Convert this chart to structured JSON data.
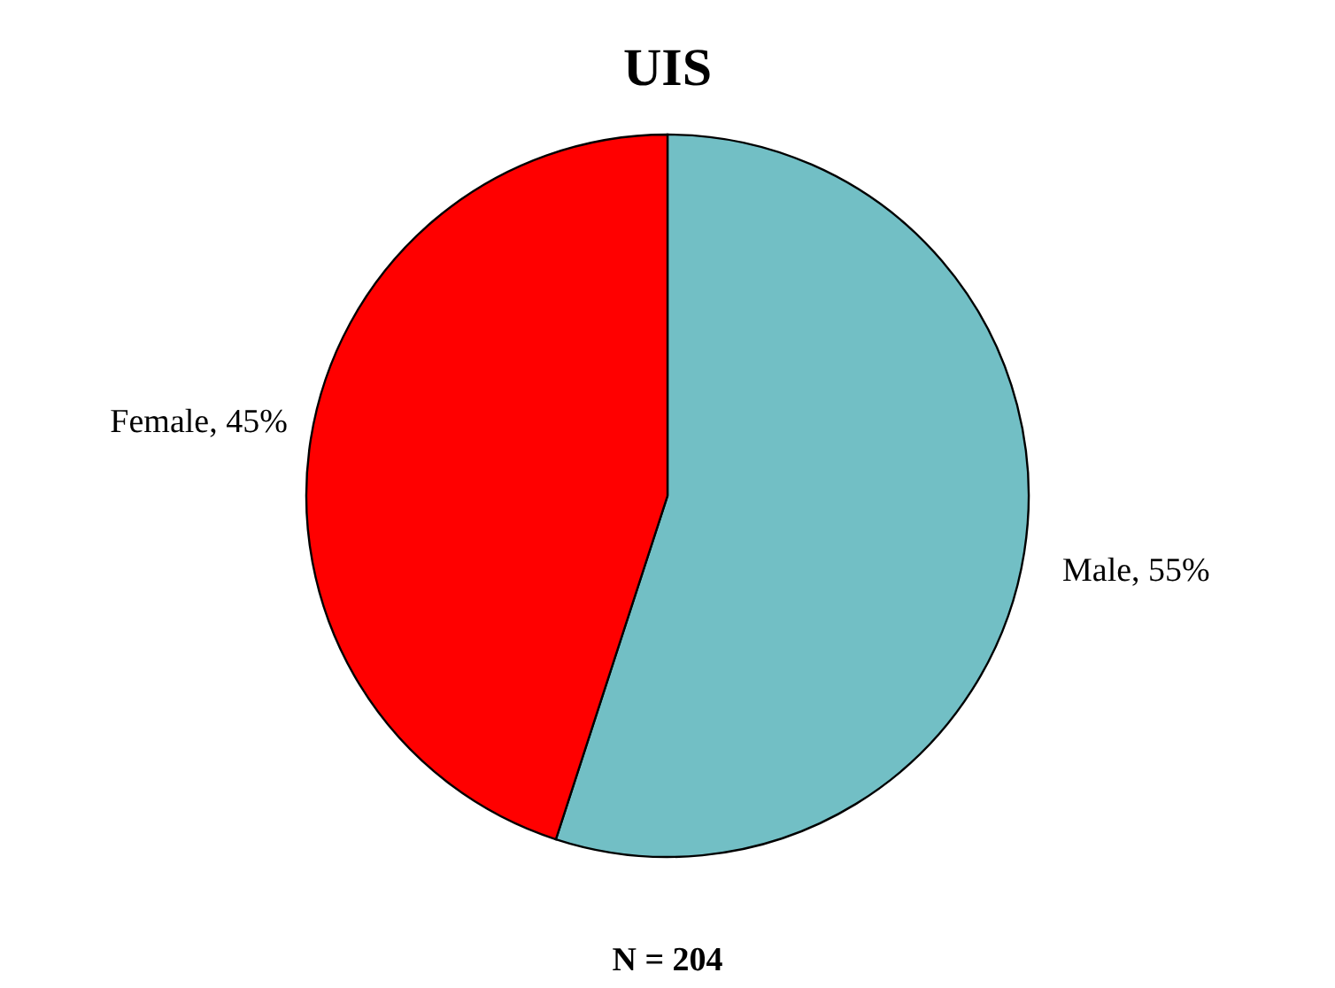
{
  "chart_data": {
    "type": "pie",
    "title": "UIS",
    "categories": [
      "Male",
      "Female"
    ],
    "values": [
      55,
      45
    ],
    "colors": [
      "#72bfc5",
      "#ff0000"
    ],
    "value_labels": [
      "55%",
      "45%"
    ],
    "annotations": [
      "N = 204"
    ],
    "legend": false
  }
}
